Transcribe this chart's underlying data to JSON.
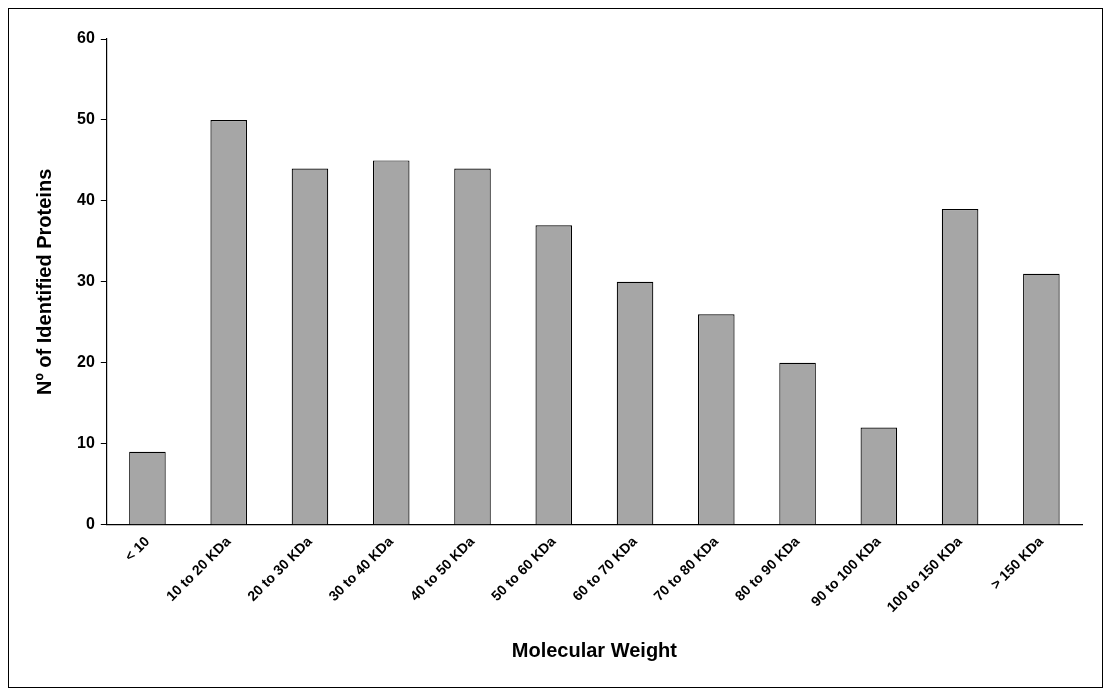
{
  "chart_data": {
    "type": "bar",
    "xlabel": "Molecular Weight",
    "ylabel": "Nº of Identified Proteins",
    "categories": [
      "< 10",
      "10 to 20 KDa",
      "20 to 30 KDa",
      "30 to 40 KDa",
      "40 to 50 KDa",
      "50 to 60 KDa",
      "60 to 70 KDa",
      "70 to 80 KDa",
      "80 to 90 KDa",
      "90 to 100 KDa",
      "100 to 150 KDa",
      "> 150 KDa"
    ],
    "values": [
      9,
      50,
      44,
      45,
      44,
      37,
      30,
      26,
      20,
      12,
      39,
      31
    ],
    "color": "#a6a6a6",
    "ylim": [
      0,
      60
    ],
    "yticks": [
      0,
      10,
      20,
      30,
      40,
      50,
      60
    ],
    "grid": false,
    "legend": false
  }
}
